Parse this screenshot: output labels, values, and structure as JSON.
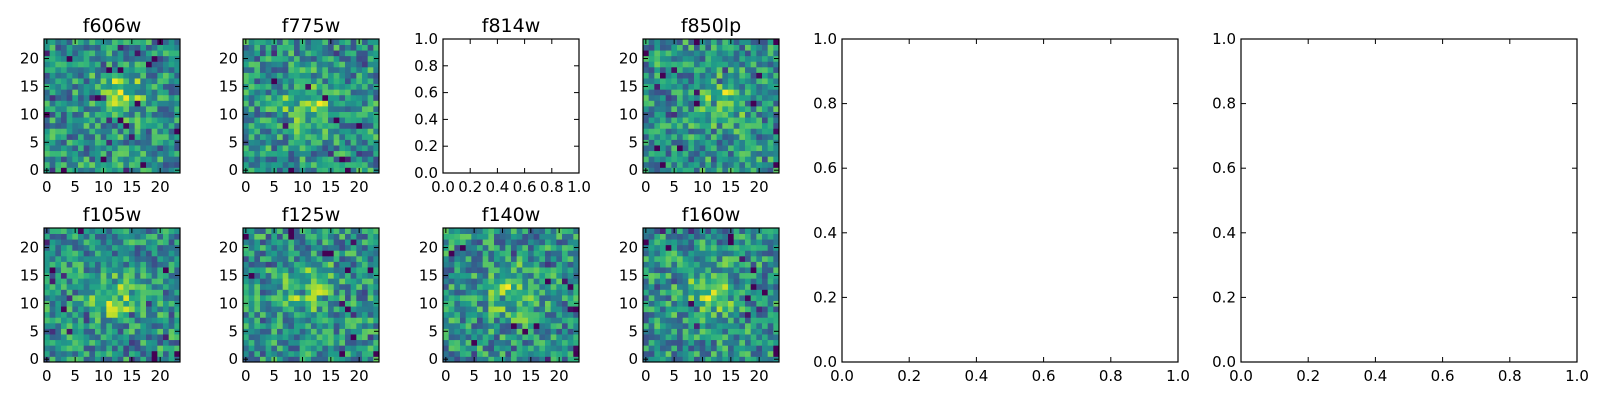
{
  "chart_data": [
    {
      "type": "heatmap",
      "title": "f606w",
      "xlim": [
        0,
        24
      ],
      "ylim": [
        0,
        24
      ],
      "x_ticks": [
        "0",
        "5",
        "10",
        "15",
        "20"
      ],
      "y_ticks": [
        "0",
        "5",
        "10",
        "15",
        "20"
      ],
      "colormap": "viridis",
      "blob_center": [
        13,
        14
      ],
      "values": []
    },
    {
      "type": "heatmap",
      "title": "f775w",
      "xlim": [
        0,
        24
      ],
      "ylim": [
        0,
        24
      ],
      "x_ticks": [
        "0",
        "5",
        "10",
        "15",
        "20"
      ],
      "y_ticks": [
        "0",
        "5",
        "10",
        "15",
        "20"
      ],
      "colormap": "viridis",
      "blob_center": [
        11,
        12
      ],
      "values": []
    },
    {
      "type": "line",
      "title": "f814w",
      "xlim": [
        0.0,
        1.0
      ],
      "ylim": [
        0.0,
        1.0
      ],
      "x_ticks": [
        "0.0",
        "0.2",
        "0.4",
        "0.6",
        "0.8",
        "1.0"
      ],
      "y_ticks": [
        "0.0",
        "0.2",
        "0.4",
        "0.6",
        "0.8",
        "1.0"
      ],
      "series": []
    },
    {
      "type": "heatmap",
      "title": "f850lp",
      "xlim": [
        0,
        24
      ],
      "ylim": [
        0,
        24
      ],
      "x_ticks": [
        "0",
        "5",
        "10",
        "15",
        "20"
      ],
      "y_ticks": [
        "0",
        "5",
        "10",
        "15",
        "20"
      ],
      "colormap": "viridis",
      "blob_center": [
        13,
        13
      ],
      "values": []
    },
    {
      "type": "line",
      "title": "",
      "xlim": [
        0.0,
        1.0
      ],
      "ylim": [
        0.0,
        1.0
      ],
      "x_ticks": [
        "0.0",
        "0.2",
        "0.4",
        "0.6",
        "0.8",
        "1.0"
      ],
      "y_ticks": [
        "0.0",
        "0.2",
        "0.4",
        "0.6",
        "0.8",
        "1.0"
      ],
      "series": []
    },
    {
      "type": "line",
      "title": "",
      "xlim": [
        0.0,
        1.0
      ],
      "ylim": [
        0.0,
        1.0
      ],
      "x_ticks": [
        "0.0",
        "0.2",
        "0.4",
        "0.6",
        "0.8",
        "1.0"
      ],
      "y_ticks": [
        "0.0",
        "0.2",
        "0.4",
        "0.6",
        "0.8",
        "1.0"
      ],
      "series": []
    },
    {
      "type": "heatmap",
      "title": "f105w",
      "xlim": [
        0,
        24
      ],
      "ylim": [
        0,
        24
      ],
      "x_ticks": [
        "0",
        "5",
        "10",
        "15",
        "20"
      ],
      "y_ticks": [
        "0",
        "5",
        "10",
        "15",
        "20"
      ],
      "colormap": "viridis",
      "blob_center": [
        12,
        11
      ],
      "values": []
    },
    {
      "type": "heatmap",
      "title": "f125w",
      "xlim": [
        0,
        24
      ],
      "ylim": [
        0,
        24
      ],
      "x_ticks": [
        "0",
        "5",
        "10",
        "15",
        "20"
      ],
      "y_ticks": [
        "0",
        "5",
        "10",
        "15",
        "20"
      ],
      "colormap": "viridis",
      "blob_center": [
        11,
        13
      ],
      "values": []
    },
    {
      "type": "heatmap",
      "title": "f140w",
      "xlim": [
        0,
        24
      ],
      "ylim": [
        0,
        24
      ],
      "x_ticks": [
        "0",
        "5",
        "10",
        "15",
        "20"
      ],
      "y_ticks": [
        "0",
        "5",
        "10",
        "15",
        "20"
      ],
      "colormap": "viridis",
      "blob_center": [
        12,
        12
      ],
      "values": []
    },
    {
      "type": "heatmap",
      "title": "f160w",
      "xlim": [
        0,
        24
      ],
      "ylim": [
        0,
        24
      ],
      "x_ticks": [
        "0",
        "5",
        "10",
        "15",
        "20"
      ],
      "y_ticks": [
        "0",
        "5",
        "10",
        "15",
        "20"
      ],
      "colormap": "viridis",
      "blob_center": [
        11,
        12
      ],
      "values": []
    }
  ]
}
